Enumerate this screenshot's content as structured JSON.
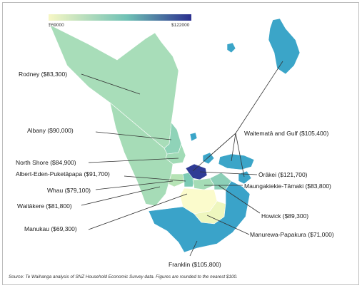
{
  "legend": {
    "min_label": "$69000",
    "max_label": "$122000",
    "color_low": "#f7f7c4",
    "color_mid": "#6fc1b5",
    "color_high": "#2b2f8f"
  },
  "labels": {
    "rodney": "Rodney ($83,300)",
    "albany": "Albany ($90,000)",
    "north_shore": "North Shore ($84,900)",
    "albert_eden": "Albert-Eden-Puketāpapa ($91,700)",
    "whau": "Whau ($79,100)",
    "waitakere": "Waitākere ($81,800)",
    "manukau": "Manukau ($69,300)",
    "waitemata": "Waitematā and Gulf ($105,400)",
    "orakei": "Ōrākei ($121,700)",
    "maungakiekie": "Maungakiekie-Tāmaki ($83,800)",
    "howick": "Howick ($89,300)",
    "manurewa": "Manurewa-Papakura ($71,000)",
    "franklin": "Franklin ($105,800)"
  },
  "source": "Source: Te Waihanga analysis of SNZ Household Economic Survey data. Figures are rounded to the nearest $100.",
  "colors": {
    "rodney": "#a8ddb9",
    "north_shore": "#a1dbb6",
    "albany": "#8fd3b8",
    "waitakere": "#a6dcb7",
    "whau": "#b6e3b5",
    "albert_eden": "#7ccbb4",
    "orakei": "#2f3b95",
    "maungakiekie": "#a5dcb6",
    "howick": "#8ccfb7",
    "manukau": "#fbfbcc",
    "manurewa": "#eef6be",
    "franklin": "#3aa3c9",
    "waitemata": "#3ba5c8",
    "leader": "#333333"
  }
}
